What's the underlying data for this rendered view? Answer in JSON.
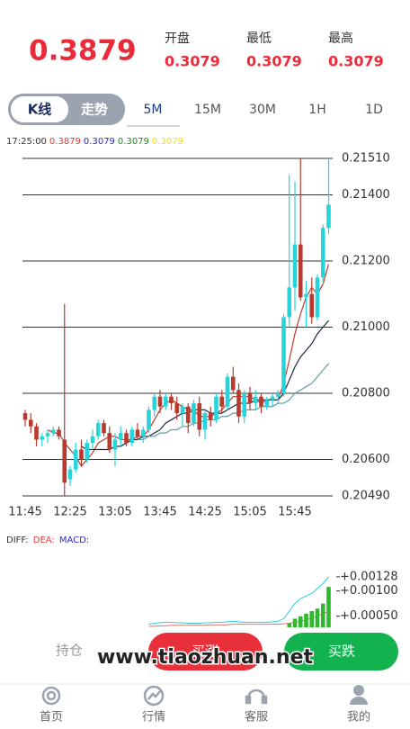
{
  "header": {
    "price": "0.3879",
    "stats": [
      {
        "label": "开盘",
        "value": "0.3079"
      },
      {
        "label": "最低",
        "value": "0.3079"
      },
      {
        "label": "最高",
        "value": "0.3079"
      }
    ]
  },
  "toggle": [
    "K线",
    "走势"
  ],
  "periods": [
    "5M",
    "15M",
    "30M",
    "1H",
    "1D"
  ],
  "info": {
    "time": "17:25:00",
    "values": [
      {
        "text": "0.3879",
        "color": "#e53935"
      },
      {
        "text": "0.3079",
        "color": "#2a2ad0"
      },
      {
        "text": "0.3079",
        "color": "#1b8a1b"
      },
      {
        "text": "0.3079",
        "color": "#f0e020"
      }
    ]
  },
  "chart_data": [
    {
      "type": "candlestick",
      "categories": [
        "11:45",
        null,
        null,
        null,
        null,
        null,
        null,
        null,
        "12:25",
        null,
        null,
        null,
        null,
        null,
        null,
        null,
        "13:05",
        null,
        null,
        null,
        null,
        null,
        null,
        null,
        "13:45",
        null,
        null,
        null,
        null,
        null,
        null,
        null,
        "14:25",
        null,
        null,
        null,
        null,
        null,
        null,
        null,
        "15:05",
        null,
        null,
        null,
        null,
        null,
        null,
        null,
        "15:45",
        null,
        null,
        null,
        null,
        null,
        null
      ],
      "candles": [
        [
          0.2074,
          0.2075,
          0.207,
          0.2072
        ],
        [
          0.2072,
          0.2074,
          0.2068,
          0.207
        ],
        [
          0.207,
          0.2071,
          0.2064,
          0.2066
        ],
        [
          0.2066,
          0.2068,
          0.2064,
          0.2067
        ],
        [
          0.2067,
          0.2069,
          0.2065,
          0.2068
        ],
        [
          0.2068,
          0.207,
          0.2067,
          0.2069
        ],
        [
          0.2069,
          0.207,
          0.2066,
          0.2067
        ],
        [
          0.2066,
          0.2107,
          0.2049,
          0.2053
        ],
        [
          0.2054,
          0.2058,
          0.2052,
          0.2057
        ],
        [
          0.2057,
          0.2065,
          0.2056,
          0.2063
        ],
        [
          0.2063,
          0.2066,
          0.2058,
          0.206
        ],
        [
          0.206,
          0.2066,
          0.2059,
          0.2065
        ],
        [
          0.2065,
          0.2069,
          0.2063,
          0.2067
        ],
        [
          0.2067,
          0.2072,
          0.2066,
          0.2071
        ],
        [
          0.2071,
          0.2072,
          0.2067,
          0.2068
        ],
        [
          0.2068,
          0.207,
          0.2062,
          0.2063
        ],
        [
          0.2063,
          0.2068,
          0.2058,
          0.2066
        ],
        [
          0.2066,
          0.207,
          0.2064,
          0.2068
        ],
        [
          0.2068,
          0.2069,
          0.2064,
          0.2065
        ],
        [
          0.2065,
          0.207,
          0.2064,
          0.2069
        ],
        [
          0.2069,
          0.2071,
          0.2066,
          0.2067
        ],
        [
          0.2067,
          0.207,
          0.2065,
          0.2069
        ],
        [
          0.2069,
          0.2076,
          0.2068,
          0.2075
        ],
        [
          0.2075,
          0.208,
          0.2073,
          0.2079
        ],
        [
          0.2079,
          0.2081,
          0.2074,
          0.2076
        ],
        [
          0.2076,
          0.208,
          0.2075,
          0.2079
        ],
        [
          0.2079,
          0.208,
          0.2075,
          0.2077
        ],
        [
          0.2077,
          0.2079,
          0.2072,
          0.2074
        ],
        [
          0.2074,
          0.2077,
          0.207,
          0.2076
        ],
        [
          0.2076,
          0.2077,
          0.2068,
          0.2071
        ],
        [
          0.2071,
          0.2078,
          0.207,
          0.2077
        ],
        [
          0.2077,
          0.2079,
          0.2067,
          0.2069
        ],
        [
          0.2069,
          0.2075,
          0.2066,
          0.2074
        ],
        [
          0.2074,
          0.2076,
          0.207,
          0.2072
        ],
        [
          0.2072,
          0.208,
          0.2071,
          0.2079
        ],
        [
          0.2079,
          0.2081,
          0.2074,
          0.2076
        ],
        [
          0.2076,
          0.2086,
          0.2075,
          0.2085
        ],
        [
          0.2085,
          0.2088,
          0.208,
          0.2081
        ],
        [
          0.2081,
          0.2083,
          0.2071,
          0.2073
        ],
        [
          0.2073,
          0.2081,
          0.2071,
          0.208
        ],
        [
          0.208,
          0.2082,
          0.2075,
          0.2077
        ],
        [
          0.2077,
          0.2081,
          0.2075,
          0.2079
        ],
        [
          0.2079,
          0.208,
          0.2074,
          0.2076
        ],
        [
          0.2076,
          0.2079,
          0.2075,
          0.2078
        ],
        [
          0.2078,
          0.208,
          0.2076,
          0.2079
        ],
        [
          0.2079,
          0.2081,
          0.2077,
          0.208
        ],
        [
          0.208,
          0.2104,
          0.2079,
          0.2103
        ],
        [
          0.2103,
          0.2146,
          0.21,
          0.2112
        ],
        [
          0.2112,
          0.2144,
          0.2105,
          0.2125
        ],
        [
          0.2125,
          0.2151,
          0.2108,
          0.2109
        ],
        [
          0.2109,
          0.2114,
          0.21,
          0.211
        ],
        [
          0.211,
          0.2115,
          0.2101,
          0.2103
        ],
        [
          0.2103,
          0.2116,
          0.2102,
          0.2115
        ],
        [
          0.2115,
          0.2131,
          0.2113,
          0.213
        ],
        [
          0.213,
          0.2151,
          0.2128,
          0.2137
        ]
      ],
      "up_color": "#26d4dc",
      "down_color": "#b83a2e",
      "series": [
        {
          "color": "#c0392b",
          "values": [
            null,
            null,
            null,
            null,
            0.2069,
            0.2068,
            0.2068,
            0.2065,
            0.2063,
            0.2061,
            0.2058,
            0.206,
            0.2062,
            0.2065,
            0.2066,
            0.2067,
            0.2067,
            0.2066,
            0.2066,
            0.2066,
            0.2067,
            0.2067,
            0.2069,
            0.2072,
            0.2075,
            0.2077,
            0.2078,
            0.2077,
            0.2076,
            0.2075,
            0.2075,
            0.2073,
            0.2073,
            0.2073,
            0.2074,
            0.2075,
            0.2077,
            0.2079,
            0.2079,
            0.2079,
            0.2079,
            0.2078,
            0.2077,
            0.2078,
            0.2078,
            0.2078,
            0.2083,
            0.209,
            0.2098,
            0.2104,
            0.2109,
            0.2112,
            0.211,
            0.2113,
            0.2119
          ]
        },
        {
          "color": "#1c2541",
          "values": [
            null,
            null,
            null,
            null,
            null,
            null,
            null,
            null,
            null,
            null,
            0.2064,
            0.2063,
            0.2063,
            0.2063,
            0.2063,
            0.2063,
            0.2064,
            0.2064,
            0.2065,
            0.2066,
            0.2066,
            0.2067,
            0.2067,
            0.2068,
            0.2069,
            0.2071,
            0.2072,
            0.2073,
            0.2074,
            0.2074,
            0.2075,
            0.2075,
            0.2075,
            0.2074,
            0.2074,
            0.2074,
            0.2075,
            0.2076,
            0.2077,
            0.2077,
            0.2077,
            0.2078,
            0.2078,
            0.2078,
            0.2078,
            0.2078,
            0.208,
            0.2084,
            0.2088,
            0.2091,
            0.2093,
            0.2095,
            0.2098,
            0.21,
            0.2102
          ]
        },
        {
          "color": "#5f9ea0",
          "values": [
            null,
            null,
            null,
            null,
            null,
            null,
            null,
            null,
            null,
            null,
            null,
            null,
            null,
            null,
            null,
            null,
            null,
            null,
            null,
            null,
            0.2066,
            0.2066,
            0.2067,
            0.2067,
            0.2068,
            0.2068,
            0.2069,
            0.2069,
            0.207,
            0.207,
            0.2071,
            0.2071,
            0.2072,
            0.2072,
            0.2072,
            0.2073,
            0.2073,
            0.2074,
            0.2074,
            0.2075,
            0.2075,
            0.2075,
            0.2076,
            0.2076,
            0.2076,
            0.2077,
            0.2077,
            0.2078,
            0.208,
            0.2081,
            0.2082,
            0.2083,
            0.2085,
            0.2087,
            0.2089
          ]
        }
      ],
      "ylim": [
        0.2049,
        0.2151
      ],
      "yticks": [
        {
          "value": 0.2049,
          "label": "0.20490"
        },
        {
          "value": 0.206,
          "label": "0.20600"
        },
        {
          "value": 0.208,
          "label": "0.20800"
        },
        {
          "value": 0.21,
          "label": "0.21000"
        },
        {
          "value": 0.212,
          "label": "0.21200"
        },
        {
          "value": 0.214,
          "label": "0.21400"
        },
        {
          "value": 0.2151,
          "label": "0.21510"
        }
      ],
      "grid": true
    },
    {
      "type": "macd",
      "series": [
        {
          "name": "DIFF:",
          "label_color": "#333333",
          "color": "#33ccdd",
          "kind": "line",
          "values": [
            null,
            null,
            null,
            null,
            null,
            null,
            null,
            null,
            null,
            null,
            null,
            null,
            null,
            null,
            null,
            null,
            null,
            null,
            null,
            null,
            null,
            null,
            0.00034,
            0.00036,
            0.00037,
            0.00038,
            0.00038,
            0.00037,
            0.00037,
            0.00036,
            0.00036,
            0.00036,
            0.00037,
            0.00037,
            0.00038,
            0.00038,
            0.00039,
            0.0004,
            0.00039,
            0.00038,
            0.00038,
            0.00038,
            0.00038,
            0.00038,
            0.00039,
            0.0004,
            0.00045,
            0.0006,
            0.00075,
            0.00085,
            0.0009,
            0.00095,
            0.00105,
            0.00115,
            0.00128
          ]
        },
        {
          "name": "DEA:",
          "label_color": "#e53935",
          "color": "#e57373",
          "kind": "line",
          "values": [
            null,
            null,
            null,
            null,
            null,
            null,
            null,
            null,
            null,
            null,
            null,
            null,
            null,
            null,
            null,
            null,
            null,
            null,
            null,
            null,
            null,
            null,
            0.0003,
            0.0003,
            0.00031,
            0.00031,
            0.00032,
            0.00032,
            0.00032,
            0.00032,
            0.00032,
            0.00032,
            0.00032,
            0.00033,
            0.00033,
            0.00033,
            0.00033,
            0.00034,
            0.00034,
            0.00034,
            0.00034,
            0.00034,
            0.00034,
            0.00034,
            0.00034,
            0.00034,
            0.00035,
            0.00036,
            0.00038,
            0.0004,
            0.00043,
            0.00046,
            0.0005,
            0.00055,
            0.0006
          ]
        },
        {
          "name": "MACD:",
          "label_color": "#2a2ad0",
          "color": "#2eb82e",
          "kind": "bar",
          "values": [
            null,
            null,
            null,
            null,
            null,
            null,
            null,
            null,
            null,
            null,
            null,
            null,
            null,
            null,
            null,
            null,
            null,
            null,
            null,
            null,
            null,
            null,
            null,
            null,
            null,
            null,
            null,
            null,
            null,
            null,
            null,
            null,
            null,
            null,
            null,
            null,
            null,
            null,
            null,
            null,
            null,
            null,
            null,
            null,
            null,
            null,
            null,
            0.00036,
            0.00045,
            0.0005,
            0.00055,
            0.0006,
            0.00065,
            0.00075,
            0.00108
          ]
        }
      ],
      "ylim": [
        0.00028,
        0.00135
      ],
      "yticks": [
        {
          "value": 0.00128,
          "label": "+0.00128"
        },
        {
          "value": 0.001,
          "label": "+0.00100"
        },
        {
          "value": 0.0005,
          "label": "+0.00050"
        }
      ]
    }
  ],
  "actions": {
    "position": "持仓",
    "buy_up": "买涨",
    "buy_down": "买跌"
  },
  "watermark": "www.tiaozhuan.net",
  "nav": [
    "首页",
    "行情",
    "客服",
    "我的"
  ]
}
